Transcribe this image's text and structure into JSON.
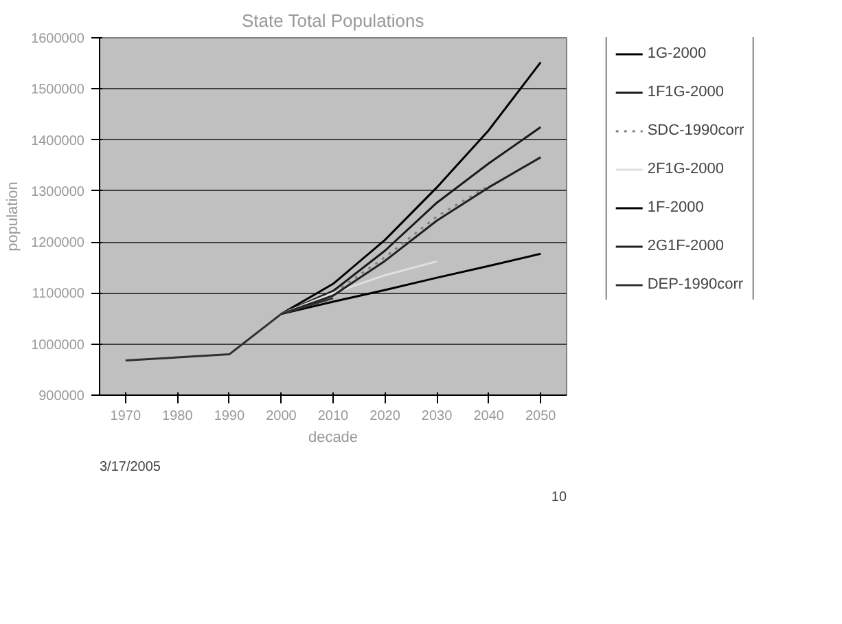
{
  "chart_data": {
    "type": "line",
    "title": "State Total Populations",
    "xlabel": "decade",
    "ylabel": "population",
    "x": [
      1970,
      1980,
      1990,
      2000,
      2010,
      2020,
      2030,
      2040,
      2050
    ],
    "xlim": [
      1965,
      2055
    ],
    "xticks": [
      1970,
      1980,
      1990,
      2000,
      2010,
      2020,
      2030,
      2040,
      2050
    ],
    "ylim": [
      900000,
      1600000
    ],
    "yticks": [
      900000,
      1000000,
      1100000,
      1200000,
      1300000,
      1400000,
      1500000,
      1600000
    ],
    "grid": "y",
    "legend": "right",
    "series": [
      {
        "name": "1G-2000",
        "color": "#000000",
        "values": [
          null,
          null,
          null,
          1059000,
          1118000,
          1204000,
          1307000,
          1419000,
          1552000
        ]
      },
      {
        "name": "1F1G-2000",
        "color": "#1a1a1a",
        "values": [
          null,
          null,
          null,
          1059000,
          1104000,
          1183000,
          1277000,
          1354000,
          1425000
        ]
      },
      {
        "name": "SDC-1990corr",
        "color": "#808080",
        "line_style": "dotted",
        "values": [
          null,
          null,
          null,
          1059000,
          1100000,
          1170000,
          1250000,
          1310000,
          null
        ]
      },
      {
        "name": "2F1G-2000",
        "color": "#e0e0e0",
        "values": [
          null,
          null,
          null,
          1059000,
          1100000,
          1135000,
          1162000,
          null,
          null
        ]
      },
      {
        "name": "1F-2000",
        "color": "#000000",
        "values": [
          null,
          null,
          null,
          1059000,
          1083000,
          1106000,
          1130000,
          1153000,
          1177000
        ]
      },
      {
        "name": "2G1F-2000",
        "color": "#202020",
        "values": [
          null,
          null,
          null,
          1059000,
          1095000,
          1163000,
          1242000,
          1307000,
          1366000
        ]
      },
      {
        "name": "DEP-1990corr",
        "color": "#303030",
        "values": [
          968000,
          974000,
          980000,
          1059000,
          1090000,
          null,
          null,
          null,
          null
        ]
      }
    ],
    "annotations": [
      "3/17/2005",
      "10"
    ]
  }
}
